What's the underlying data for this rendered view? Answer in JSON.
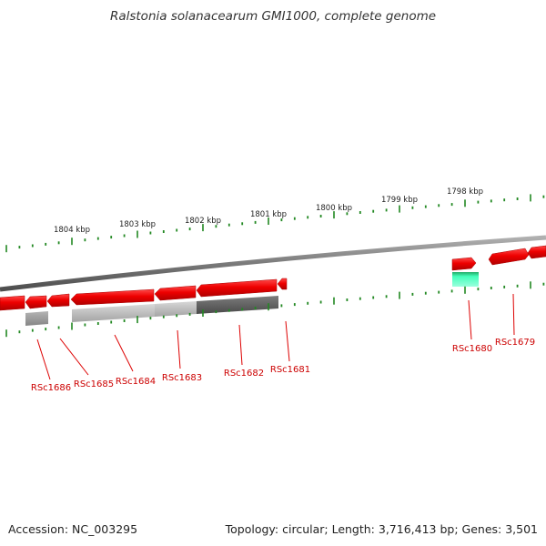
{
  "title": "Ralstonia solanacearum GMI1000, complete genome",
  "footer": {
    "accession": "Accession: NC_003295",
    "summary": "Topology: circular; Length: 3,716,413 bp; Genes: 3,501"
  },
  "scale_labels": [
    "1804 kbp",
    "1803 kbp",
    "1802 kbp",
    "1801 kbp",
    "1800 kbp",
    "1799 kbp",
    "1798 kbp"
  ],
  "genes": [
    "RSc1686",
    "RSc1685",
    "RSc1684",
    "RSc1683",
    "RSc1682",
    "RSc1681",
    "RSc1680",
    "RSc1679"
  ],
  "colors": {
    "gene_arrow": "#ee0000",
    "gene_label": "#cc0000",
    "tick": "#228822",
    "backbone": "#888888",
    "highlight_gene": "#22dd99"
  }
}
